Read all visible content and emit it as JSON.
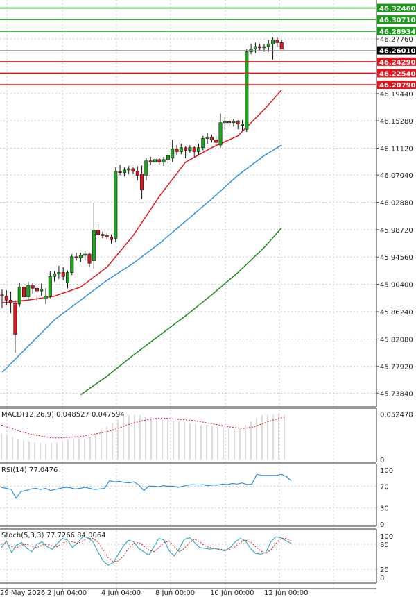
{
  "chart_data": {
    "type": "candlestick",
    "price_panel": {
      "y_ticks": [
        "46.27760",
        "46.19440",
        "46.15280",
        "46.11120",
        "46.07040",
        "46.02880",
        "45.98720",
        "45.94560",
        "45.90400",
        "45.86240",
        "45.82080",
        "45.77920",
        "45.73840"
      ],
      "ylim": [
        45.7176,
        46.3368
      ],
      "levels": [
        {
          "label": "46.32460",
          "value": 46.3246,
          "color": "#1a9a1a"
        },
        {
          "label": "46.30710",
          "value": 46.3071,
          "color": "#1a9a1a"
        },
        {
          "label": "46.28934",
          "value": 46.28934,
          "color": "#1a9a1a"
        },
        {
          "label": "46.24290",
          "value": 46.2429,
          "color": "#e8141c"
        },
        {
          "label": "46.22540",
          "value": 46.2254,
          "color": "#e8141c"
        },
        {
          "label": "46.20790",
          "value": 46.2079,
          "color": "#e8141c"
        }
      ],
      "current_price": {
        "label": "46.26010",
        "value": 46.2601
      },
      "candles": [
        [
          0,
          45.888,
          45.896,
          45.868,
          45.886
        ],
        [
          1,
          45.886,
          45.895,
          45.872,
          45.88
        ],
        [
          2,
          45.88,
          45.893,
          45.86,
          45.876
        ],
        [
          3,
          45.876,
          45.88,
          45.8,
          45.828
        ],
        [
          4,
          45.874,
          45.906,
          45.87,
          45.9
        ],
        [
          5,
          45.9,
          45.904,
          45.88,
          45.885
        ],
        [
          6,
          45.885,
          45.908,
          45.88,
          45.902
        ],
        [
          7,
          45.902,
          45.906,
          45.89,
          45.898
        ],
        [
          8,
          45.898,
          45.9,
          45.878,
          45.894
        ],
        [
          9,
          45.894,
          45.905,
          45.886,
          45.897
        ],
        [
          10,
          45.882,
          45.898,
          45.874,
          45.886
        ],
        [
          11,
          45.886,
          45.924,
          45.883,
          45.916
        ],
        [
          12,
          45.916,
          45.924,
          45.908,
          45.92
        ],
        [
          13,
          45.92,
          45.932,
          45.912,
          45.922
        ],
        [
          14,
          45.922,
          45.93,
          45.91,
          45.916
        ],
        [
          15,
          45.906,
          45.925,
          45.898,
          45.922
        ],
        [
          16,
          45.922,
          45.95,
          45.918,
          45.946
        ],
        [
          17,
          45.946,
          45.952,
          45.94,
          45.944
        ],
        [
          18,
          45.944,
          45.952,
          45.938,
          45.948
        ],
        [
          19,
          45.948,
          45.955,
          45.94,
          45.95
        ],
        [
          20,
          45.95,
          45.952,
          45.93,
          45.936
        ],
        [
          21,
          45.94,
          46.028,
          45.928,
          45.986
        ],
        [
          22,
          45.986,
          45.996,
          45.978,
          45.98
        ],
        [
          23,
          45.98,
          45.984,
          45.974,
          45.978
        ],
        [
          24,
          45.978,
          45.982,
          45.972,
          45.976
        ],
        [
          25,
          45.976,
          45.98,
          45.966,
          45.972
        ],
        [
          26,
          45.974,
          46.082,
          45.968,
          46.076
        ],
        [
          27,
          46.076,
          46.086,
          46.07,
          46.074
        ],
        [
          28,
          46.074,
          46.082,
          46.068,
          46.078
        ],
        [
          29,
          46.078,
          46.084,
          46.072,
          46.08
        ],
        [
          30,
          46.08,
          46.082,
          46.072,
          46.076
        ],
        [
          31,
          46.076,
          46.084,
          46.062,
          46.07
        ],
        [
          32,
          46.072,
          46.085,
          46.034,
          46.048
        ],
        [
          33,
          46.07,
          46.096,
          46.062,
          46.092
        ],
        [
          34,
          46.092,
          46.098,
          46.086,
          46.09
        ],
        [
          35,
          46.09,
          46.096,
          46.082,
          46.094
        ],
        [
          36,
          46.094,
          46.096,
          46.086,
          46.09
        ],
        [
          37,
          46.09,
          46.098,
          46.084,
          46.094
        ],
        [
          38,
          46.094,
          46.104,
          46.088,
          46.1
        ],
        [
          39,
          46.096,
          46.124,
          46.09,
          46.11
        ],
        [
          40,
          46.11,
          46.116,
          46.1,
          46.106
        ],
        [
          41,
          46.106,
          46.118,
          46.102,
          46.112
        ],
        [
          42,
          46.112,
          46.114,
          46.096,
          46.108
        ],
        [
          43,
          46.108,
          46.116,
          46.104,
          46.112
        ],
        [
          44,
          46.112,
          46.114,
          46.098,
          46.106
        ],
        [
          45,
          46.106,
          46.118,
          46.1,
          46.112
        ],
        [
          46,
          46.112,
          46.13,
          46.108,
          46.126
        ],
        [
          47,
          46.126,
          46.134,
          46.118,
          46.128
        ],
        [
          48,
          46.128,
          46.132,
          46.12,
          46.124
        ],
        [
          49,
          46.124,
          46.13,
          46.116,
          46.12
        ],
        [
          50,
          46.116,
          46.164,
          46.112,
          46.15
        ],
        [
          51,
          46.15,
          46.158,
          46.14,
          46.152
        ],
        [
          52,
          46.152,
          46.156,
          46.146,
          46.15
        ],
        [
          53,
          46.15,
          46.156,
          46.144,
          46.152
        ],
        [
          54,
          46.152,
          46.154,
          46.14,
          46.148
        ],
        [
          55,
          46.146,
          46.154,
          46.138,
          46.148
        ],
        [
          56,
          46.14,
          46.262,
          46.136,
          46.258
        ],
        [
          57,
          46.258,
          46.27,
          46.254,
          46.262
        ],
        [
          58,
          46.262,
          46.272,
          46.256,
          46.266
        ],
        [
          59,
          46.266,
          46.27,
          46.26,
          46.264
        ],
        [
          60,
          46.264,
          46.27,
          46.258,
          46.266
        ],
        [
          61,
          46.266,
          46.276,
          46.258,
          46.27
        ],
        [
          62,
          46.27,
          46.28,
          46.246,
          46.276
        ],
        [
          63,
          46.276,
          46.28,
          46.266,
          46.272
        ],
        [
          64,
          46.272,
          46.276,
          46.262,
          46.262
        ]
      ],
      "ma": [
        {
          "color": "#e8141c",
          "points": [
            [
              0,
              45.876
            ],
            [
              6,
              45.88
            ],
            [
              12,
              45.886
            ],
            [
              18,
              45.9
            ],
            [
              24,
              45.93
            ],
            [
              30,
              45.978
            ],
            [
              36,
              46.038
            ],
            [
              42,
              46.09
            ],
            [
              48,
              46.112
            ],
            [
              54,
              46.13
            ],
            [
              60,
              46.17
            ],
            [
              64,
              46.2
            ]
          ]
        },
        {
          "color": "#2b90e8",
          "points": [
            [
              0,
              45.77
            ],
            [
              6,
              45.81
            ],
            [
              12,
              45.85
            ],
            [
              18,
              45.88
            ],
            [
              24,
              45.91
            ],
            [
              30,
              45.936
            ],
            [
              36,
              45.966
            ],
            [
              42,
              46.0
            ],
            [
              48,
              46.034
            ],
            [
              54,
              46.07
            ],
            [
              60,
              46.1
            ],
            [
              64,
              46.116
            ]
          ]
        },
        {
          "color": "#1a8a1a",
          "points": [
            [
              18,
              45.736
            ],
            [
              24,
              45.764
            ],
            [
              30,
              45.796
            ],
            [
              36,
              45.826
            ],
            [
              42,
              45.856
            ],
            [
              48,
              45.888
            ],
            [
              54,
              45.922
            ],
            [
              60,
              45.96
            ],
            [
              64,
              45.99
            ]
          ]
        }
      ]
    },
    "macd": {
      "label": "MACD(12,26,9) 0.048527 0.047594",
      "y_ticks": [
        "0.052478",
        "0"
      ],
      "ylim": [
        0,
        0.0545
      ],
      "histogram": [
        0.03,
        0.028,
        0.026,
        0.024,
        0.022,
        0.021,
        0.02,
        0.019,
        0.018,
        0.019,
        0.02,
        0.021,
        0.023,
        0.024,
        0.025,
        0.024,
        0.026,
        0.03,
        0.034,
        0.038,
        0.042,
        0.046,
        0.05,
        0.051,
        0.052,
        0.051,
        0.05,
        0.049,
        0.048,
        0.047,
        0.046,
        0.045,
        0.044,
        0.043,
        0.042,
        0.041,
        0.04,
        0.04,
        0.039,
        0.038,
        0.037,
        0.036,
        0.035,
        0.036,
        0.04,
        0.044,
        0.048,
        0.051,
        0.052,
        0.052,
        0.053,
        0.052
      ],
      "signal": [
        0.04,
        0.036,
        0.032,
        0.029,
        0.027,
        0.025,
        0.025,
        0.026,
        0.027,
        0.029,
        0.031,
        0.034,
        0.038,
        0.042,
        0.045,
        0.047,
        0.048,
        0.047,
        0.046,
        0.045,
        0.043,
        0.041,
        0.039,
        0.037,
        0.036,
        0.038,
        0.042,
        0.046,
        0.049
      ]
    },
    "rsi": {
      "label": "RSI(14) 77.0476",
      "y_ticks": [
        "100",
        "70",
        "30",
        "0"
      ],
      "ylim": [
        0,
        100
      ],
      "values": [
        68,
        66,
        64,
        48,
        60,
        62,
        65,
        66,
        64,
        66,
        62,
        64,
        66,
        68,
        67,
        65,
        66,
        68,
        66,
        64,
        65,
        66,
        80,
        78,
        79,
        77,
        76,
        78,
        72,
        62,
        70,
        70,
        69,
        71,
        70,
        70,
        68,
        70,
        72,
        73,
        72,
        73,
        71,
        72,
        72,
        74,
        73,
        75,
        74,
        76,
        73,
        74,
        92,
        90,
        90,
        90,
        90,
        92,
        88,
        80
      ]
    },
    "stoch": {
      "label": "Stoch(5,3,3) 77.7266 84.0064",
      "y_ticks": [
        "100",
        "80",
        "20",
        "0"
      ],
      "ylim": [
        0,
        100
      ],
      "k": [
        72,
        88,
        60,
        78,
        84,
        70,
        62,
        80,
        86,
        74,
        68,
        82,
        94,
        90,
        72,
        84,
        98,
        96,
        86,
        62,
        40,
        30,
        36,
        56,
        76,
        90,
        86,
        70,
        62,
        54,
        74,
        94,
        90,
        64,
        52,
        70,
        92,
        96,
        84,
        72,
        70,
        68,
        70,
        66,
        64,
        72,
        86,
        94,
        88,
        70,
        58,
        56,
        60,
        86,
        98,
        96,
        88,
        82
      ],
      "d": [
        80,
        82,
        74,
        72,
        78,
        80,
        74,
        72,
        78,
        80,
        76,
        74,
        82,
        88,
        86,
        82,
        88,
        94,
        94,
        86,
        66,
        48,
        38,
        40,
        52,
        70,
        82,
        84,
        76,
        66,
        62,
        72,
        84,
        88,
        74,
        62,
        70,
        84,
        92,
        86,
        76,
        72,
        70,
        68,
        66,
        68,
        74,
        84,
        90,
        86,
        74,
        64,
        58,
        66,
        82,
        94,
        94,
        88
      ]
    },
    "x_ticks": [
      "29 May 2026",
      "2 Jun 04:00",
      "4 Jun 04:00",
      "8 Jun 00:00",
      "10 Jun 00:00",
      "12 Jun 00:00"
    ]
  }
}
